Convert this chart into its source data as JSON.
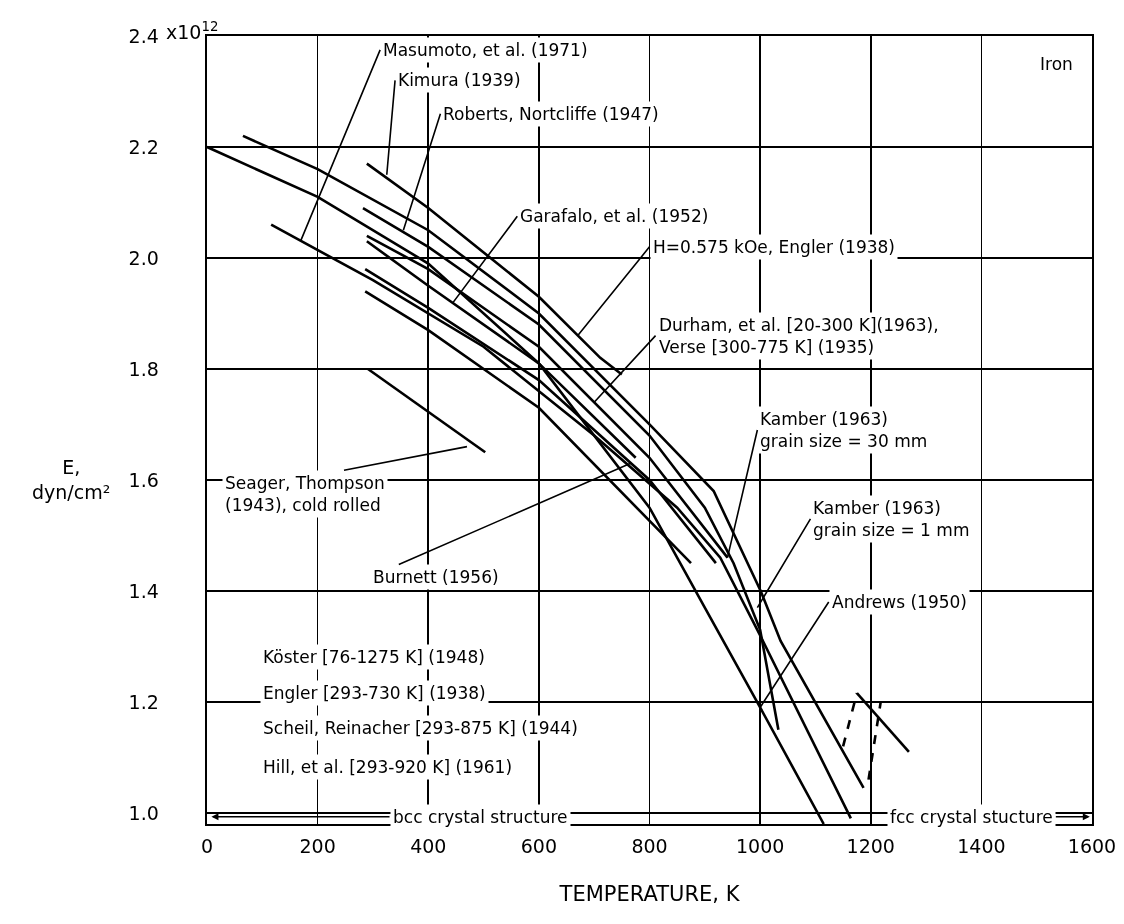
{
  "chart_data": {
    "type": "line",
    "xlabel": "TEMPERATURE, K",
    "ylabel": "E,\ndyn/cm²",
    "xlim": [
      0,
      1600
    ],
    "xticks": [
      0,
      200,
      400,
      600,
      800,
      1000,
      1200,
      1400,
      1600
    ],
    "ylim": [
      0.98,
      2.4
    ],
    "yticks": [
      {
        "value": 1.0,
        "label": "1.0"
      },
      {
        "value": 1.2,
        "label": "1.2"
      },
      {
        "value": 1.4,
        "label": "1.4"
      },
      {
        "value": 1.6,
        "label": "1.6"
      },
      {
        "value": 1.8,
        "label": "1.8"
      },
      {
        "value": 2.0,
        "label": "2.0"
      },
      {
        "value": 2.2,
        "label": "2.2"
      },
      {
        "value": 2.4,
        "label": "2.4"
      }
    ],
    "grid": true,
    "marker": "none",
    "line_style": "solid",
    "series": [
      {
        "color": "#000000",
        "x": [
          0,
          200,
          400,
          600,
          800,
          900,
          1000,
          1115
        ],
        "values": [
          2.2,
          2.11,
          1.99,
          1.81,
          1.55,
          1.37,
          1.19,
          0.98
        ]
      },
      {
        "color": "#000000",
        "x": [
          65,
          200,
          400,
          600,
          800,
          916,
          1001,
          1037,
          1187
        ],
        "values": [
          2.22,
          2.16,
          2.05,
          1.9,
          1.7,
          1.58,
          1.4,
          1.31,
          1.045
        ]
      },
      {
        "color": "#000000",
        "x": [
          1175,
          1269
        ],
        "values": [
          1.216,
          1.11
        ]
      },
      {
        "color": "#000000",
        "line_style": "dashed",
        "x": [
          1150,
          1175
        ],
        "values": [
          1.12,
          1.216
        ]
      },
      {
        "color": "#000000",
        "line_style": "dashed",
        "x": [
          1196,
          1218
        ],
        "values": [
          1.06,
          1.2
        ]
      },
      {
        "color": "#000000",
        "x": [
          116,
          300,
          500,
          700,
          850,
          928,
          1000,
          1164
        ],
        "values": [
          2.06,
          1.96,
          1.84,
          1.68,
          1.55,
          1.46,
          1.32,
          0.99
        ]
      },
      {
        "color": "#000000",
        "x": [
          289,
          400,
          600,
          711,
          750
        ],
        "values": [
          2.17,
          2.09,
          1.93,
          1.82,
          1.79
        ]
      },
      {
        "color": "#000000",
        "x": [
          282,
          400,
          600,
          800,
          900,
          952,
          1000,
          1033
        ],
        "values": [
          2.09,
          2.02,
          1.88,
          1.68,
          1.55,
          1.45,
          1.33,
          1.15
        ]
      },
      {
        "color": "#000000",
        "x": [
          289,
          400,
          600,
          800,
          941
        ],
        "values": [
          2.04,
          1.98,
          1.84,
          1.64,
          1.46
        ]
      },
      {
        "color": "#000000",
        "x": [
          289,
          400,
          600,
          775
        ],
        "values": [
          2.03,
          1.95,
          1.81,
          1.64
        ]
      },
      {
        "color": "#000000",
        "x": [
          286,
          400,
          600,
          800,
          920
        ],
        "values": [
          1.98,
          1.91,
          1.78,
          1.6,
          1.45
        ]
      },
      {
        "color": "#000000",
        "x": [
          286,
          400,
          600,
          875
        ],
        "values": [
          1.94,
          1.87,
          1.73,
          1.45
        ]
      },
      {
        "color": "#000000",
        "x": [
          291,
          503
        ],
        "values": [
          1.8,
          1.65
        ]
      }
    ],
    "annotations": [
      {
        "text": "Masumoto, et al. (1971)",
        "x": 169,
        "y": 2.03
      },
      {
        "text": "Kimura (1939)",
        "x": 325,
        "y": 2.15
      },
      {
        "text": "Roberts, Nortcliffe (1947)",
        "x": 355,
        "y": 2.05
      },
      {
        "text": "Garafalo, et al. (1952)",
        "x": 445,
        "y": 1.92
      },
      {
        "text": "H=0.575 kOe, Engler (1938)",
        "x": 670,
        "y": 1.86
      },
      {
        "text": "Durham, et al. [20-300 K](1963),\nVerse [300-775 K] (1935)",
        "x": 700,
        "y": 1.74
      },
      {
        "text": "Kamber (1963)\ngrain size = 30 mm",
        "x": 941,
        "y": 1.46
      },
      {
        "text": "Kamber (1963)\ngrain size = 1 mm",
        "x": 995,
        "y": 1.37
      },
      {
        "text": "Andrews (1950)",
        "x": 1000,
        "y": 1.19
      },
      {
        "text": "Seager, Thompson\n(1943), cold rolled",
        "x": 470,
        "y": 1.66
      },
      {
        "text": "Burnett (1956)",
        "x": 766,
        "y": 1.63
      },
      "Köster [76-1275 K] (1948)",
      "Engler [293-730 K] (1938)",
      "Scheil, Reinacher [293-875 K] (1944)",
      "Hill, et al. [293-920 K] (1961)",
      "Iron",
      "bcc crystal structure",
      "fcc crystal stucture",
      "x10$^{12}$"
    ]
  }
}
